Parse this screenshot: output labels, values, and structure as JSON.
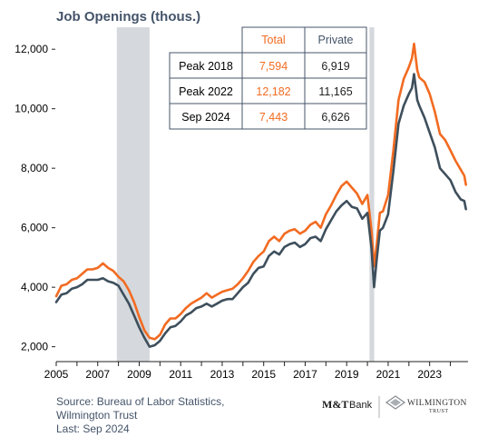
{
  "chart_data": {
    "type": "line",
    "title": "Job Openings (thous.)",
    "xlim": [
      2005.0,
      2024.85
    ],
    "ylim": [
      1500,
      12800
    ],
    "x_ticks": [
      2005,
      2007,
      2009,
      2011,
      2013,
      2015,
      2017,
      2019,
      2021,
      2023
    ],
    "x_tick_labels": [
      "2005",
      "2007",
      "2009",
      "2011",
      "2013",
      "2015",
      "2017",
      "2019",
      "2021",
      "2023"
    ],
    "y_ticks": [
      2000,
      4000,
      6000,
      8000,
      10000,
      12000
    ],
    "y_tick_labels": [
      "2,000",
      "4,000",
      "6,000",
      "8,000",
      "10,000",
      "12,000"
    ],
    "recessions": [
      [
        2007.92,
        2009.5
      ],
      [
        2020.1,
        2020.33
      ]
    ],
    "series": [
      {
        "name": "Total",
        "color": "#f26b21",
        "points": [
          [
            2005.0,
            3700
          ],
          [
            2005.25,
            4050
          ],
          [
            2005.5,
            4100
          ],
          [
            2005.75,
            4250
          ],
          [
            2006.0,
            4300
          ],
          [
            2006.25,
            4450
          ],
          [
            2006.5,
            4600
          ],
          [
            2006.75,
            4600
          ],
          [
            2007.0,
            4650
          ],
          [
            2007.25,
            4800
          ],
          [
            2007.5,
            4650
          ],
          [
            2007.75,
            4550
          ],
          [
            2008.0,
            4350
          ],
          [
            2008.25,
            4200
          ],
          [
            2008.5,
            3900
          ],
          [
            2008.75,
            3500
          ],
          [
            2009.0,
            3000
          ],
          [
            2009.25,
            2550
          ],
          [
            2009.5,
            2300
          ],
          [
            2009.75,
            2250
          ],
          [
            2010.0,
            2400
          ],
          [
            2010.25,
            2750
          ],
          [
            2010.5,
            2950
          ],
          [
            2010.75,
            2950
          ],
          [
            2011.0,
            3100
          ],
          [
            2011.25,
            3300
          ],
          [
            2011.5,
            3450
          ],
          [
            2011.75,
            3550
          ],
          [
            2012.0,
            3650
          ],
          [
            2012.25,
            3800
          ],
          [
            2012.5,
            3650
          ],
          [
            2012.75,
            3750
          ],
          [
            2013.0,
            3850
          ],
          [
            2013.25,
            3900
          ],
          [
            2013.5,
            3950
          ],
          [
            2013.75,
            4100
          ],
          [
            2014.0,
            4300
          ],
          [
            2014.25,
            4550
          ],
          [
            2014.5,
            4850
          ],
          [
            2014.75,
            5050
          ],
          [
            2015.0,
            5200
          ],
          [
            2015.25,
            5550
          ],
          [
            2015.5,
            5700
          ],
          [
            2015.75,
            5550
          ],
          [
            2016.0,
            5800
          ],
          [
            2016.25,
            5900
          ],
          [
            2016.5,
            5950
          ],
          [
            2016.75,
            5800
          ],
          [
            2017.0,
            5900
          ],
          [
            2017.25,
            6100
          ],
          [
            2017.5,
            6200
          ],
          [
            2017.75,
            6000
          ],
          [
            2018.0,
            6450
          ],
          [
            2018.25,
            6750
          ],
          [
            2018.5,
            7100
          ],
          [
            2018.75,
            7400
          ],
          [
            2019.0,
            7550
          ],
          [
            2019.25,
            7350
          ],
          [
            2019.5,
            7150
          ],
          [
            2019.75,
            6800
          ],
          [
            2020.0,
            7100
          ],
          [
            2020.2,
            5900
          ],
          [
            2020.32,
            4700
          ],
          [
            2020.45,
            5450
          ],
          [
            2020.6,
            6500
          ],
          [
            2020.75,
            6550
          ],
          [
            2021.0,
            7100
          ],
          [
            2021.25,
            8600
          ],
          [
            2021.5,
            10300
          ],
          [
            2021.75,
            11000
          ],
          [
            2022.0,
            11400
          ],
          [
            2022.15,
            11700
          ],
          [
            2022.25,
            12182
          ],
          [
            2022.4,
            11300
          ],
          [
            2022.5,
            11050
          ],
          [
            2022.75,
            10900
          ],
          [
            2023.0,
            10500
          ],
          [
            2023.25,
            9900
          ],
          [
            2023.5,
            9150
          ],
          [
            2023.75,
            8950
          ],
          [
            2024.0,
            8600
          ],
          [
            2024.25,
            8250
          ],
          [
            2024.5,
            7950
          ],
          [
            2024.67,
            7750
          ],
          [
            2024.75,
            7443
          ]
        ]
      },
      {
        "name": "Private",
        "color": "#3e4f5c",
        "points": [
          [
            2005.0,
            3500
          ],
          [
            2005.25,
            3750
          ],
          [
            2005.5,
            3800
          ],
          [
            2005.75,
            3950
          ],
          [
            2006.0,
            4000
          ],
          [
            2006.25,
            4100
          ],
          [
            2006.5,
            4250
          ],
          [
            2006.75,
            4250
          ],
          [
            2007.0,
            4250
          ],
          [
            2007.25,
            4300
          ],
          [
            2007.5,
            4200
          ],
          [
            2007.75,
            4150
          ],
          [
            2008.0,
            4050
          ],
          [
            2008.25,
            3750
          ],
          [
            2008.5,
            3450
          ],
          [
            2008.75,
            3050
          ],
          [
            2009.0,
            2650
          ],
          [
            2009.25,
            2300
          ],
          [
            2009.5,
            2000
          ],
          [
            2009.75,
            2050
          ],
          [
            2010.0,
            2200
          ],
          [
            2010.25,
            2450
          ],
          [
            2010.5,
            2650
          ],
          [
            2010.75,
            2700
          ],
          [
            2011.0,
            2850
          ],
          [
            2011.25,
            3050
          ],
          [
            2011.5,
            3150
          ],
          [
            2011.75,
            3300
          ],
          [
            2012.0,
            3350
          ],
          [
            2012.25,
            3450
          ],
          [
            2012.5,
            3350
          ],
          [
            2012.75,
            3450
          ],
          [
            2013.0,
            3550
          ],
          [
            2013.25,
            3600
          ],
          [
            2013.5,
            3600
          ],
          [
            2013.75,
            3800
          ],
          [
            2014.0,
            4000
          ],
          [
            2014.25,
            4150
          ],
          [
            2014.5,
            4450
          ],
          [
            2014.75,
            4650
          ],
          [
            2015.0,
            4700
          ],
          [
            2015.25,
            5050
          ],
          [
            2015.5,
            5200
          ],
          [
            2015.75,
            5100
          ],
          [
            2016.0,
            5350
          ],
          [
            2016.25,
            5450
          ],
          [
            2016.5,
            5500
          ],
          [
            2016.75,
            5350
          ],
          [
            2017.0,
            5450
          ],
          [
            2017.25,
            5650
          ],
          [
            2017.5,
            5700
          ],
          [
            2017.75,
            5550
          ],
          [
            2018.0,
            5950
          ],
          [
            2018.25,
            6250
          ],
          [
            2018.5,
            6550
          ],
          [
            2018.75,
            6750
          ],
          [
            2019.0,
            6900
          ],
          [
            2019.25,
            6700
          ],
          [
            2019.5,
            6650
          ],
          [
            2019.75,
            6300
          ],
          [
            2020.0,
            6500
          ],
          [
            2020.2,
            5300
          ],
          [
            2020.32,
            4000
          ],
          [
            2020.45,
            4950
          ],
          [
            2020.6,
            5900
          ],
          [
            2020.75,
            6000
          ],
          [
            2021.0,
            6450
          ],
          [
            2021.25,
            7900
          ],
          [
            2021.5,
            9500
          ],
          [
            2021.75,
            10100
          ],
          [
            2022.0,
            10500
          ],
          [
            2022.15,
            10700
          ],
          [
            2022.25,
            11165
          ],
          [
            2022.4,
            10300
          ],
          [
            2022.5,
            10100
          ],
          [
            2022.75,
            9700
          ],
          [
            2023.0,
            9200
          ],
          [
            2023.25,
            8700
          ],
          [
            2023.5,
            8000
          ],
          [
            2023.75,
            7800
          ],
          [
            2024.0,
            7600
          ],
          [
            2024.25,
            7200
          ],
          [
            2024.5,
            6950
          ],
          [
            2024.67,
            6900
          ],
          [
            2024.75,
            6626
          ]
        ]
      }
    ],
    "table": {
      "headers": [
        "",
        "Total",
        "Private"
      ],
      "rows": [
        {
          "label": "Peak 2018",
          "total": "7,594",
          "private": "6,919"
        },
        {
          "label": "Peak 2022",
          "total": "12,182",
          "private": "11,165"
        },
        {
          "label": "Sep 2024",
          "total": "7,443",
          "private": "6,626"
        }
      ]
    }
  },
  "footer": {
    "source_line1": "Source: Bureau of Labor Statistics,",
    "source_line2": "Wilmington Trust",
    "last_line": "Last: Sep 2024"
  },
  "logos": {
    "mt_bank_name": "M&T",
    "mt_bank_suffix": "Bank",
    "wilmington_name": "WILMINGTON",
    "wilmington_sub": "TRUST"
  },
  "colors": {
    "total": "#f26b21",
    "private": "#3e4f5c",
    "recession": "#d5d9dd",
    "title": "#44546a",
    "table_border": "#44546a"
  }
}
